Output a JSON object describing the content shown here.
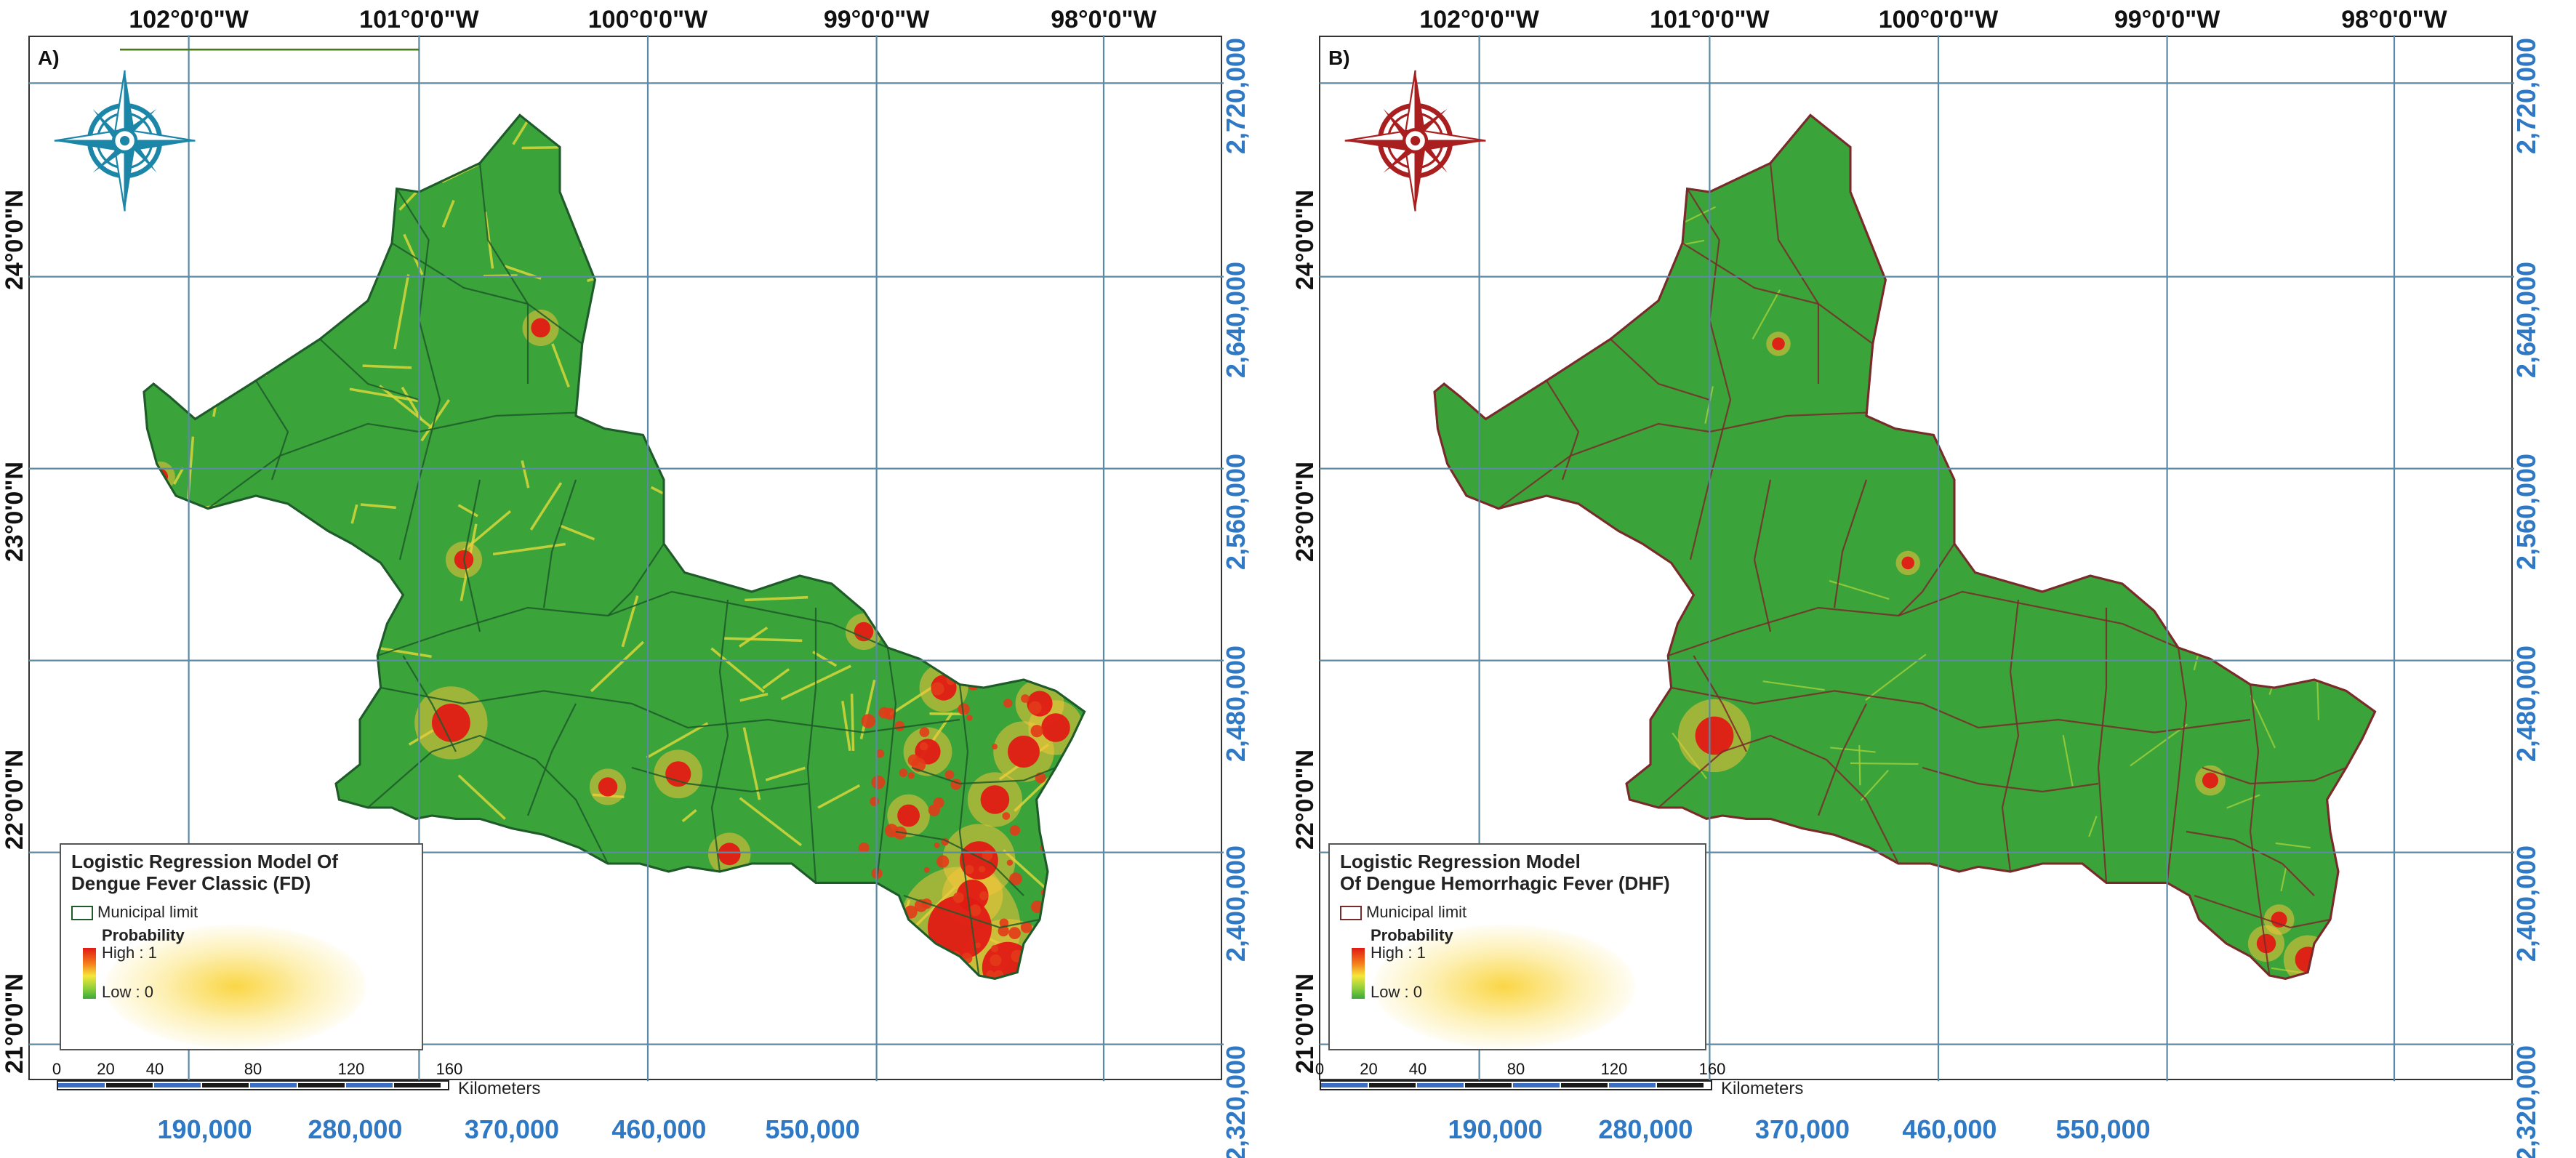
{
  "panels": [
    {
      "id": "A",
      "label": "A)",
      "top_lon_labels": [
        "102°0'0\"W",
        "101°0'0\"W",
        "100°0'0\"W",
        "99°0'0\"W",
        "98°0'0\"W"
      ],
      "left_lat_labels": [
        "24°0'0\"N",
        "23°0'0\"N",
        "22°0'0\"N",
        "21°0'0\"N"
      ],
      "right_y_labels": [
        "2,720,000",
        "2,640,000",
        "2,560,000",
        "2,480,000",
        "2,400,000",
        "2,320,000"
      ],
      "bottom_x_labels": [
        "190,000",
        "280,000",
        "370,000",
        "460,000",
        "550,000"
      ],
      "compass_color": "#1b86a8",
      "legend": {
        "title_lines": [
          "Logistic Regression Model Of",
          "Dengue Fever Classic (FD)"
        ],
        "municipal_label": "Municipal limit",
        "probability_label": "Probability",
        "high_label": "High : 1",
        "low_label": "Low : 0"
      },
      "scale_ticks": [
        "0",
        "20",
        "40",
        "80",
        "120",
        "160"
      ],
      "scale_unit": "Kilometers",
      "boundary_color": "#1f5a2a",
      "risk_level": "high"
    },
    {
      "id": "B",
      "label": "B)",
      "top_lon_labels": [
        "102°0'0\"W",
        "101°0'0\"W",
        "100°0'0\"W",
        "99°0'0\"W",
        "98°0'0\"W"
      ],
      "left_lat_labels": [
        "24°0'0\"N",
        "23°0'0\"N",
        "22°0'0\"N",
        "21°0'0\"N"
      ],
      "right_y_labels": [
        "2,720,000",
        "2,640,000",
        "2,560,000",
        "2,480,000",
        "2,400,000",
        "2,320,000"
      ],
      "bottom_x_labels": [
        "190,000",
        "280,000",
        "370,000",
        "460,000",
        "550,000"
      ],
      "compass_color": "#a91e1e",
      "legend": {
        "title_lines": [
          "Logistic Regression Model",
          "Of Dengue Hemorrhagic Fever (DHF)"
        ],
        "municipal_label": "Municipal limit",
        "probability_label": "Probability",
        "high_label": "High : 1",
        "low_label": "Low : 0"
      },
      "scale_ticks": [
        "0",
        "20",
        "40",
        "80",
        "120",
        "160"
      ],
      "scale_unit": "Kilometers",
      "boundary_color": "#7a2a2a",
      "risk_level": "low"
    }
  ],
  "colors": {
    "map_green": "#3aa33a",
    "grid_line": "#5b8aa6",
    "coord_blue": "#2f78c4",
    "high_red": "#e01a14",
    "mid_yellow": "#f2e03a"
  }
}
